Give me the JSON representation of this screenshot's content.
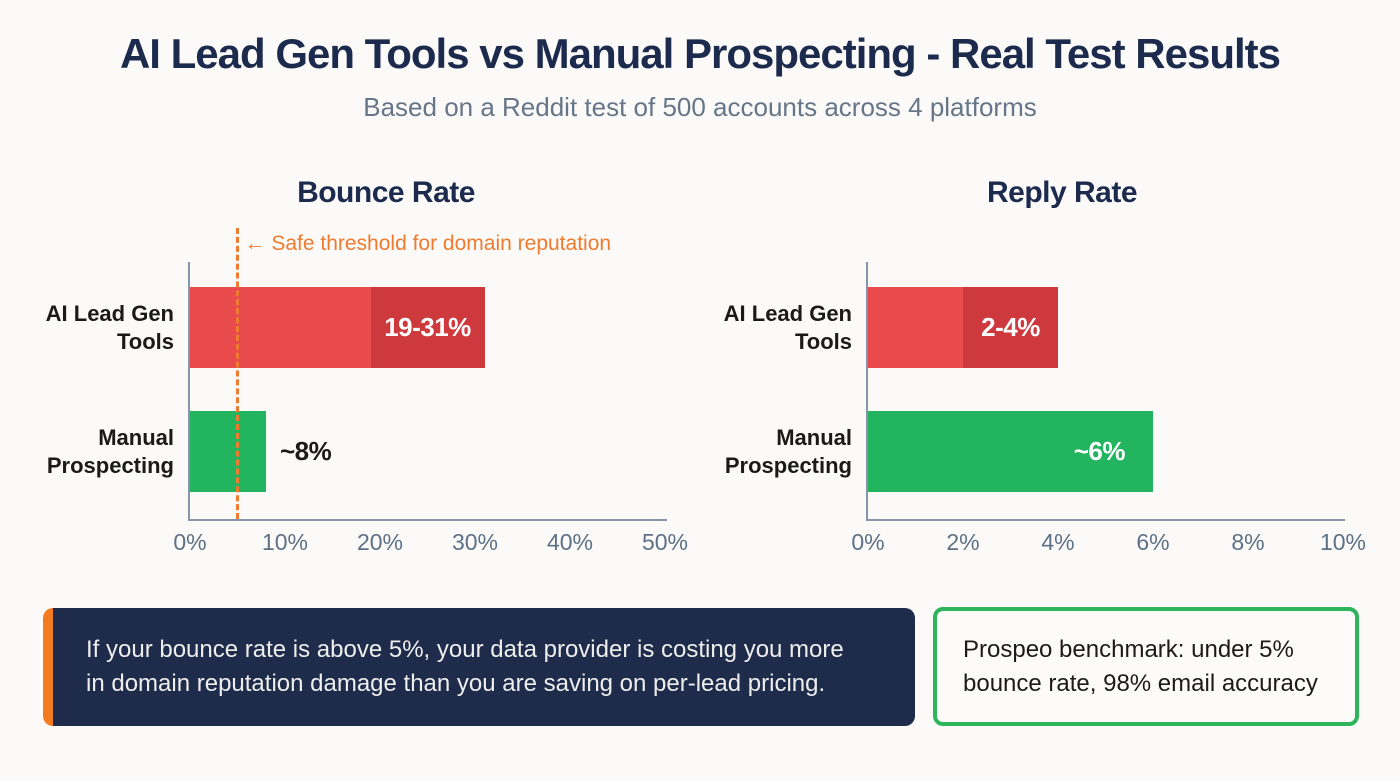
{
  "header": {
    "title": "AI Lead Gen Tools vs Manual Prospecting - Real Test Results",
    "subtitle": "Based on a Reddit test of 500 accounts across 4 platforms"
  },
  "chart_data": [
    {
      "type": "bar",
      "orientation": "horizontal",
      "title": "Bounce Rate",
      "xlim": [
        0,
        50
      ],
      "x_ticks": [
        "0%",
        "10%",
        "20%",
        "30%",
        "40%",
        "50%"
      ],
      "grid": false,
      "legend": false,
      "threshold": {
        "value": 5,
        "label": "← Safe threshold for domain reputation",
        "color": "#ee7b2f",
        "style": "dashed"
      },
      "bars": [
        {
          "category": "AI Lead Gen Tools",
          "category_lines": [
            "AI Lead Gen",
            "Tools"
          ],
          "value_min": 19,
          "value_max": 31,
          "label": "19-31%",
          "color": "#e94b4d",
          "color_high_segment": "#ce393e",
          "label_placement": "segment-center",
          "label_color": "#ffffff"
        },
        {
          "category": "Manual Prospecting",
          "category_lines": [
            "Manual",
            "Prospecting"
          ],
          "value": 8,
          "label": "~8%",
          "color": "#23b45f",
          "label_placement": "outside-right",
          "label_color": "#1a1a1a"
        }
      ]
    },
    {
      "type": "bar",
      "orientation": "horizontal",
      "title": "Reply Rate",
      "xlim": [
        0,
        10
      ],
      "x_ticks": [
        "0%",
        "2%",
        "4%",
        "6%",
        "8%",
        "10%"
      ],
      "grid": false,
      "legend": false,
      "bars": [
        {
          "category": "AI Lead Gen Tools",
          "category_lines": [
            "AI Lead Gen",
            "Tools"
          ],
          "value_min": 2,
          "value_max": 4,
          "label": "2-4%",
          "color": "#e94b4d",
          "color_high_segment": "#ce393e",
          "label_placement": "segment-center",
          "label_color": "#ffffff"
        },
        {
          "category": "Manual Prospecting",
          "category_lines": [
            "Manual",
            "Prospecting"
          ],
          "value": 6,
          "label": "~6%",
          "color": "#23b45f",
          "label_placement": "inside-right",
          "label_color": "#ffffff"
        }
      ]
    }
  ],
  "callouts": {
    "warning": {
      "line1": "If your bounce rate is above 5%, your data provider is costing you more",
      "line2": "in domain reputation damage than you are saving on per-lead pricing.",
      "accent_color": "#f47c20",
      "background": "#1f2b4a"
    },
    "benchmark": {
      "line1": "Prospeo benchmark: under 5%",
      "line2": "bounce rate, 98% email accuracy",
      "border_color": "#2eb55c"
    }
  },
  "colors": {
    "background": "#fbfaf8",
    "heading": "#1c2b4d",
    "subtitle": "#667588",
    "axis": "#8795aa",
    "tick_text": "#5d7186",
    "bar_red": "#e94b4d",
    "bar_red_dark": "#ce393e",
    "bar_green": "#23b45f",
    "threshold_orange": "#ee7b2f"
  }
}
